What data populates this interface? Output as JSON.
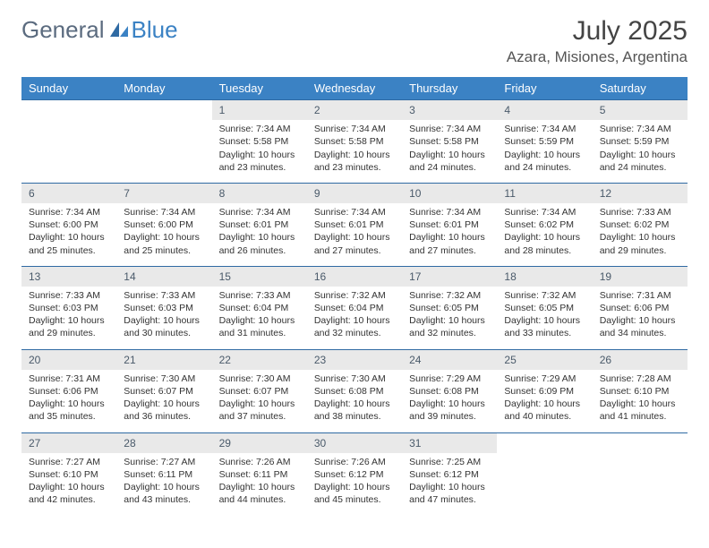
{
  "brand": {
    "part1": "General",
    "part2": "Blue"
  },
  "title": "July 2025",
  "location": "Azara, Misiones, Argentina",
  "colors": {
    "header_bg": "#3b82c4",
    "header_text": "#ffffff",
    "daynum_bg": "#e9e9e9",
    "daynum_text": "#4a5a6a",
    "row_border": "#2f6aa3",
    "body_text": "#333333",
    "page_bg": "#ffffff"
  },
  "day_headers": [
    "Sunday",
    "Monday",
    "Tuesday",
    "Wednesday",
    "Thursday",
    "Friday",
    "Saturday"
  ],
  "weeks": [
    [
      {
        "empty": true
      },
      {
        "empty": true
      },
      {
        "num": "1",
        "sunrise": "Sunrise: 7:34 AM",
        "sunset": "Sunset: 5:58 PM",
        "daylight": "Daylight: 10 hours and 23 minutes."
      },
      {
        "num": "2",
        "sunrise": "Sunrise: 7:34 AM",
        "sunset": "Sunset: 5:58 PM",
        "daylight": "Daylight: 10 hours and 23 minutes."
      },
      {
        "num": "3",
        "sunrise": "Sunrise: 7:34 AM",
        "sunset": "Sunset: 5:58 PM",
        "daylight": "Daylight: 10 hours and 24 minutes."
      },
      {
        "num": "4",
        "sunrise": "Sunrise: 7:34 AM",
        "sunset": "Sunset: 5:59 PM",
        "daylight": "Daylight: 10 hours and 24 minutes."
      },
      {
        "num": "5",
        "sunrise": "Sunrise: 7:34 AM",
        "sunset": "Sunset: 5:59 PM",
        "daylight": "Daylight: 10 hours and 24 minutes."
      }
    ],
    [
      {
        "num": "6",
        "sunrise": "Sunrise: 7:34 AM",
        "sunset": "Sunset: 6:00 PM",
        "daylight": "Daylight: 10 hours and 25 minutes."
      },
      {
        "num": "7",
        "sunrise": "Sunrise: 7:34 AM",
        "sunset": "Sunset: 6:00 PM",
        "daylight": "Daylight: 10 hours and 25 minutes."
      },
      {
        "num": "8",
        "sunrise": "Sunrise: 7:34 AM",
        "sunset": "Sunset: 6:01 PM",
        "daylight": "Daylight: 10 hours and 26 minutes."
      },
      {
        "num": "9",
        "sunrise": "Sunrise: 7:34 AM",
        "sunset": "Sunset: 6:01 PM",
        "daylight": "Daylight: 10 hours and 27 minutes."
      },
      {
        "num": "10",
        "sunrise": "Sunrise: 7:34 AM",
        "sunset": "Sunset: 6:01 PM",
        "daylight": "Daylight: 10 hours and 27 minutes."
      },
      {
        "num": "11",
        "sunrise": "Sunrise: 7:34 AM",
        "sunset": "Sunset: 6:02 PM",
        "daylight": "Daylight: 10 hours and 28 minutes."
      },
      {
        "num": "12",
        "sunrise": "Sunrise: 7:33 AM",
        "sunset": "Sunset: 6:02 PM",
        "daylight": "Daylight: 10 hours and 29 minutes."
      }
    ],
    [
      {
        "num": "13",
        "sunrise": "Sunrise: 7:33 AM",
        "sunset": "Sunset: 6:03 PM",
        "daylight": "Daylight: 10 hours and 29 minutes."
      },
      {
        "num": "14",
        "sunrise": "Sunrise: 7:33 AM",
        "sunset": "Sunset: 6:03 PM",
        "daylight": "Daylight: 10 hours and 30 minutes."
      },
      {
        "num": "15",
        "sunrise": "Sunrise: 7:33 AM",
        "sunset": "Sunset: 6:04 PM",
        "daylight": "Daylight: 10 hours and 31 minutes."
      },
      {
        "num": "16",
        "sunrise": "Sunrise: 7:32 AM",
        "sunset": "Sunset: 6:04 PM",
        "daylight": "Daylight: 10 hours and 32 minutes."
      },
      {
        "num": "17",
        "sunrise": "Sunrise: 7:32 AM",
        "sunset": "Sunset: 6:05 PM",
        "daylight": "Daylight: 10 hours and 32 minutes."
      },
      {
        "num": "18",
        "sunrise": "Sunrise: 7:32 AM",
        "sunset": "Sunset: 6:05 PM",
        "daylight": "Daylight: 10 hours and 33 minutes."
      },
      {
        "num": "19",
        "sunrise": "Sunrise: 7:31 AM",
        "sunset": "Sunset: 6:06 PM",
        "daylight": "Daylight: 10 hours and 34 minutes."
      }
    ],
    [
      {
        "num": "20",
        "sunrise": "Sunrise: 7:31 AM",
        "sunset": "Sunset: 6:06 PM",
        "daylight": "Daylight: 10 hours and 35 minutes."
      },
      {
        "num": "21",
        "sunrise": "Sunrise: 7:30 AM",
        "sunset": "Sunset: 6:07 PM",
        "daylight": "Daylight: 10 hours and 36 minutes."
      },
      {
        "num": "22",
        "sunrise": "Sunrise: 7:30 AM",
        "sunset": "Sunset: 6:07 PM",
        "daylight": "Daylight: 10 hours and 37 minutes."
      },
      {
        "num": "23",
        "sunrise": "Sunrise: 7:30 AM",
        "sunset": "Sunset: 6:08 PM",
        "daylight": "Daylight: 10 hours and 38 minutes."
      },
      {
        "num": "24",
        "sunrise": "Sunrise: 7:29 AM",
        "sunset": "Sunset: 6:08 PM",
        "daylight": "Daylight: 10 hours and 39 minutes."
      },
      {
        "num": "25",
        "sunrise": "Sunrise: 7:29 AM",
        "sunset": "Sunset: 6:09 PM",
        "daylight": "Daylight: 10 hours and 40 minutes."
      },
      {
        "num": "26",
        "sunrise": "Sunrise: 7:28 AM",
        "sunset": "Sunset: 6:10 PM",
        "daylight": "Daylight: 10 hours and 41 minutes."
      }
    ],
    [
      {
        "num": "27",
        "sunrise": "Sunrise: 7:27 AM",
        "sunset": "Sunset: 6:10 PM",
        "daylight": "Daylight: 10 hours and 42 minutes."
      },
      {
        "num": "28",
        "sunrise": "Sunrise: 7:27 AM",
        "sunset": "Sunset: 6:11 PM",
        "daylight": "Daylight: 10 hours and 43 minutes."
      },
      {
        "num": "29",
        "sunrise": "Sunrise: 7:26 AM",
        "sunset": "Sunset: 6:11 PM",
        "daylight": "Daylight: 10 hours and 44 minutes."
      },
      {
        "num": "30",
        "sunrise": "Sunrise: 7:26 AM",
        "sunset": "Sunset: 6:12 PM",
        "daylight": "Daylight: 10 hours and 45 minutes."
      },
      {
        "num": "31",
        "sunrise": "Sunrise: 7:25 AM",
        "sunset": "Sunset: 6:12 PM",
        "daylight": "Daylight: 10 hours and 47 minutes."
      },
      {
        "empty": true
      },
      {
        "empty": true
      }
    ]
  ]
}
